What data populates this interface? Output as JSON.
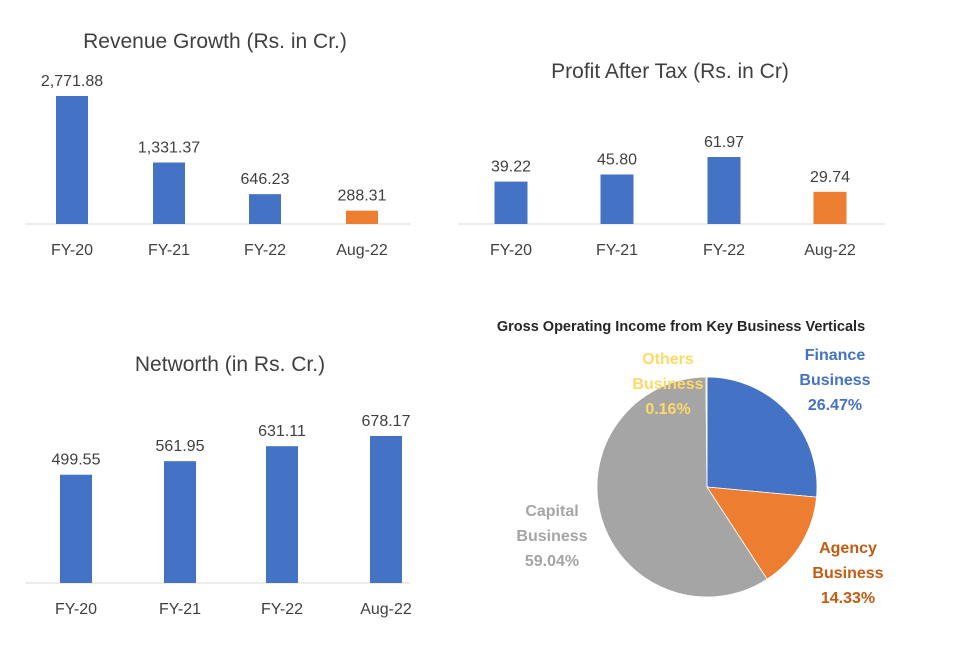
{
  "colors": {
    "blue": "#4472C4",
    "orange": "#ED7D31",
    "gray": "#A5A5A5",
    "yellow": "#FFC000",
    "text": "#404040",
    "axis": "#D9D9D9"
  },
  "chart_data": [
    {
      "type": "bar",
      "title": "Revenue Growth (Rs. in Cr.)",
      "categories": [
        "FY-20",
        "FY-21",
        "FY-22",
        "Aug-22"
      ],
      "values": [
        2771.88,
        1331.37,
        646.23,
        288.31
      ],
      "labels": [
        "2,771.88",
        "1,331.37",
        "646.23",
        "288.31"
      ],
      "bar_colors": [
        "#4472C4",
        "#4472C4",
        "#4472C4",
        "#ED7D31"
      ],
      "ylim": [
        0,
        2771.88
      ],
      "grid": false
    },
    {
      "type": "bar",
      "title": "Profit After Tax (Rs. in Cr)",
      "categories": [
        "FY-20",
        "FY-21",
        "FY-22",
        "Aug-22"
      ],
      "values": [
        39.22,
        45.8,
        61.97,
        29.74
      ],
      "labels": [
        "39.22",
        "45.80",
        "61.97",
        "29.74"
      ],
      "bar_colors": [
        "#4472C4",
        "#4472C4",
        "#4472C4",
        "#ED7D31"
      ],
      "ylim": [
        0,
        61.97
      ],
      "grid": false
    },
    {
      "type": "bar",
      "title": "Networth (in Rs. Cr.)",
      "categories": [
        "FY-20",
        "FY-21",
        "FY-22",
        "Aug-22"
      ],
      "values": [
        499.55,
        561.95,
        631.11,
        678.17
      ],
      "labels": [
        "499.55",
        "561.95",
        "631.11",
        "678.17"
      ],
      "bar_colors": [
        "#4472C4",
        "#4472C4",
        "#4472C4",
        "#4472C4"
      ],
      "ylim": [
        0,
        678.17
      ],
      "grid": false
    },
    {
      "type": "pie",
      "title": "Gross Operating Income from Key Business Verticals",
      "slices": [
        {
          "name": "Finance Business",
          "lines": [
            "Finance",
            "Business"
          ],
          "value": 26.47,
          "label": "26.47%",
          "color": "#4472C4",
          "label_color": "#4472C4"
        },
        {
          "name": "Agency Business",
          "lines": [
            "Agency",
            "Business"
          ],
          "value": 14.33,
          "label": "14.33%",
          "color": "#ED7D31",
          "label_color": "#C55A11"
        },
        {
          "name": "Capital Business",
          "lines": [
            "Capital",
            "Business"
          ],
          "value": 59.04,
          "label": "59.04%",
          "color": "#A5A5A5",
          "label_color": "#A5A5A5"
        },
        {
          "name": "Others Business",
          "lines": [
            "Others",
            "Business"
          ],
          "value": 0.16,
          "label": "0.16%",
          "color": "#FFC000",
          "label_color": "#FFD966"
        }
      ]
    }
  ]
}
